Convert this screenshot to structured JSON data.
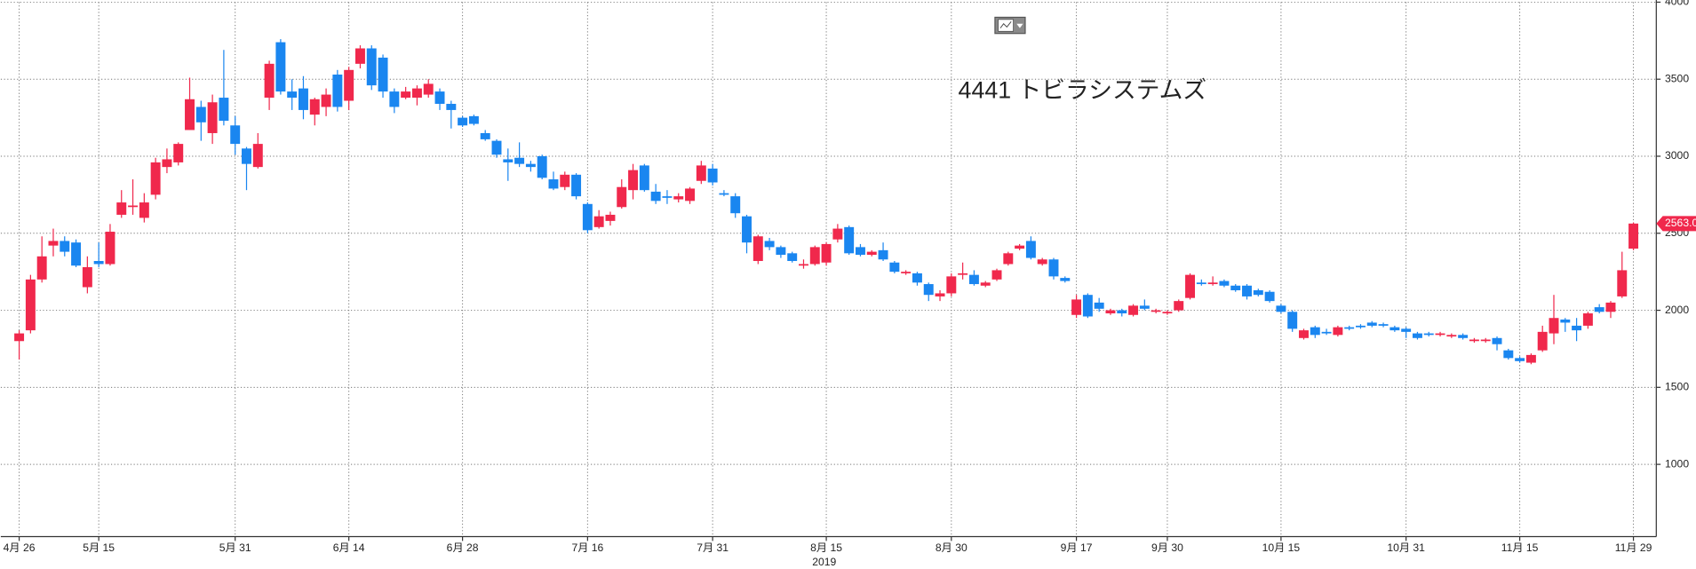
{
  "chart_data": {
    "type": "candlestick",
    "title": "4441 トビラシステムズ",
    "xlabel": "2019",
    "categories": [
      "4月 26",
      null,
      null,
      null,
      null,
      null,
      null,
      "5月 15",
      null,
      null,
      null,
      null,
      null,
      null,
      null,
      null,
      null,
      null,
      null,
      "5月 31",
      null,
      null,
      null,
      null,
      null,
      null,
      null,
      null,
      null,
      "6月 14",
      null,
      null,
      null,
      null,
      null,
      null,
      null,
      null,
      null,
      "6月 28",
      null,
      null,
      null,
      null,
      null,
      null,
      null,
      null,
      null,
      null,
      "7月 16",
      null,
      null,
      null,
      null,
      null,
      null,
      null,
      null,
      null,
      null,
      "7月 31",
      null,
      null,
      null,
      null,
      null,
      null,
      null,
      null,
      null,
      "8月 15",
      null,
      null,
      null,
      null,
      null,
      null,
      null,
      null,
      null,
      null,
      "8月 30",
      null,
      null,
      null,
      null,
      null,
      null,
      null,
      null,
      null,
      null,
      "9月 17",
      null,
      null,
      null,
      null,
      null,
      null,
      null,
      "9月 30",
      null,
      null,
      null,
      null,
      null,
      null,
      null,
      null,
      null,
      "10月 15",
      null,
      null,
      null,
      null,
      null,
      null,
      null,
      null,
      null,
      null,
      "10月 31",
      null,
      null,
      null,
      null,
      null,
      null,
      null,
      null,
      null,
      "11月 15",
      null,
      null,
      null,
      null,
      null,
      null,
      null,
      null,
      null,
      "11月 29"
    ],
    "open": [
      1800,
      1870,
      2200,
      2420,
      2450,
      2440,
      2150,
      2320,
      2300,
      2620,
      2670,
      2600,
      2750,
      2930,
      2960,
      3170,
      3320,
      3150,
      3380,
      3200,
      3050,
      2930,
      3380,
      3740,
      3420,
      3440,
      3270,
      3320,
      3530,
      3360,
      3600,
      3700,
      3640,
      3420,
      3380,
      3380,
      3400,
      3420,
      3340,
      3250,
      3260,
      3150,
      3100,
      2980,
      2990,
      2950,
      3000,
      2850,
      2800,
      2880,
      2690,
      2540,
      2580,
      2670,
      2780,
      2940,
      2770,
      2740,
      2720,
      2710,
      2840,
      2920,
      2760,
      2740,
      2610,
      2320,
      2450,
      2410,
      2370,
      2290,
      2300,
      2310,
      2460,
      2540,
      2410,
      2360,
      2390,
      2310,
      2240,
      2240,
      2170,
      2090,
      2110,
      2230,
      2230,
      2160,
      2200,
      2300,
      2400,
      2450,
      2300,
      2330,
      2210,
      1970,
      2100,
      2050,
      1980,
      2000,
      1970,
      2030,
      1990,
      1980,
      2000,
      2080,
      2180,
      2170,
      2190,
      2160,
      2160,
      2130,
      2120,
      2030,
      1990,
      1820,
      1890,
      1860,
      1840,
      1890,
      1900,
      1920,
      1910,
      1890,
      1880,
      1850,
      1850,
      1840,
      1830,
      1840,
      1800,
      1800,
      1820,
      1740,
      1690,
      1660,
      1740,
      1850,
      1940,
      1900,
      1900,
      2020,
      1990,
      2090,
      2400
    ],
    "high": [
      1870,
      2230,
      2480,
      2530,
      2480,
      2460,
      2350,
      2440,
      2560,
      2780,
      2850,
      2760,
      2990,
      3050,
      3090,
      3510,
      3360,
      3400,
      3690,
      3260,
      3060,
      3150,
      3620,
      3760,
      3500,
      3520,
      3380,
      3440,
      3560,
      3580,
      3720,
      3720,
      3660,
      3440,
      3450,
      3460,
      3500,
      3440,
      3360,
      3260,
      3270,
      3170,
      3110,
      3050,
      3090,
      2970,
      3010,
      2900,
      2900,
      2890,
      2700,
      2650,
      2640,
      2850,
      2950,
      2950,
      2820,
      2780,
      2760,
      2800,
      2970,
      2950,
      2780,
      2760,
      2620,
      2490,
      2470,
      2420,
      2380,
      2330,
      2420,
      2440,
      2560,
      2550,
      2430,
      2390,
      2440,
      2320,
      2260,
      2250,
      2180,
      2130,
      2240,
      2310,
      2260,
      2190,
      2270,
      2380,
      2430,
      2480,
      2340,
      2340,
      2220,
      2100,
      2110,
      2080,
      2010,
      2010,
      2040,
      2070,
      2010,
      2000,
      2070,
      2240,
      2200,
      2220,
      2200,
      2170,
      2170,
      2140,
      2130,
      2040,
      2000,
      1880,
      1900,
      1880,
      1900,
      1900,
      1910,
      1930,
      1920,
      1900,
      1890,
      1860,
      1860,
      1860,
      1850,
      1850,
      1820,
      1820,
      1830,
      1750,
      1700,
      1720,
      1900,
      2100,
      1950,
      1950,
      1990,
      2040,
      2060,
      2380,
      2570
    ],
    "low": [
      1680,
      1850,
      2180,
      2350,
      2350,
      2280,
      2110,
      2280,
      2290,
      2600,
      2620,
      2570,
      2720,
      2890,
      2940,
      3170,
      3100,
      3080,
      3200,
      3010,
      2780,
      2920,
      3300,
      3400,
      3300,
      3240,
      3200,
      3260,
      3290,
      3300,
      3570,
      3430,
      3380,
      3280,
      3370,
      3330,
      3380,
      3300,
      3180,
      3190,
      3200,
      3100,
      2990,
      2840,
      2930,
      2900,
      2850,
      2780,
      2780,
      2720,
      2500,
      2530,
      2550,
      2660,
      2720,
      2770,
      2690,
      2690,
      2700,
      2690,
      2820,
      2810,
      2740,
      2600,
      2370,
      2300,
      2390,
      2340,
      2310,
      2270,
      2290,
      2290,
      2440,
      2360,
      2350,
      2350,
      2320,
      2240,
      2230,
      2160,
      2060,
      2060,
      2090,
      2200,
      2160,
      2150,
      2190,
      2290,
      2390,
      2330,
      2290,
      2200,
      2180,
      1950,
      1950,
      1990,
      1970,
      1960,
      1960,
      2000,
      1980,
      1970,
      1990,
      2070,
      2160,
      2160,
      2150,
      2120,
      2070,
      2090,
      2050,
      1980,
      1860,
      1810,
      1820,
      1840,
      1830,
      1870,
      1880,
      1890,
      1890,
      1860,
      1820,
      1810,
      1830,
      1830,
      1820,
      1810,
      1790,
      1790,
      1740,
      1680,
      1660,
      1650,
      1730,
      1780,
      1860,
      1800,
      1880,
      1980,
      1950,
      2080,
      2390
    ],
    "close": [
      1850,
      2200,
      2350,
      2450,
      2380,
      2290,
      2280,
      2300,
      2510,
      2700,
      2680,
      2700,
      2960,
      2980,
      3080,
      3370,
      3220,
      3350,
      3230,
      3080,
      2950,
      3080,
      3600,
      3420,
      3380,
      3300,
      3370,
      3400,
      3320,
      3560,
      3700,
      3460,
      3420,
      3320,
      3420,
      3440,
      3470,
      3340,
      3300,
      3200,
      3210,
      3110,
      3010,
      2960,
      2950,
      2930,
      2860,
      2790,
      2880,
      2740,
      2520,
      2610,
      2620,
      2800,
      2910,
      2780,
      2710,
      2730,
      2740,
      2790,
      2940,
      2830,
      2750,
      2630,
      2440,
      2480,
      2410,
      2360,
      2320,
      2300,
      2410,
      2430,
      2530,
      2370,
      2360,
      2380,
      2330,
      2250,
      2250,
      2180,
      2100,
      2110,
      2220,
      2240,
      2170,
      2180,
      2260,
      2370,
      2420,
      2340,
      2330,
      2220,
      2190,
      2070,
      1960,
      2010,
      2000,
      1980,
      2030,
      2010,
      2000,
      1990,
      2060,
      2230,
      2170,
      2180,
      2160,
      2130,
      2090,
      2100,
      2060,
      1990,
      1880,
      1870,
      1840,
      1850,
      1890,
      1880,
      1890,
      1900,
      1900,
      1870,
      1860,
      1820,
      1840,
      1850,
      1840,
      1820,
      1810,
      1810,
      1780,
      1690,
      1670,
      1710,
      1860,
      1950,
      1920,
      1870,
      1980,
      1990,
      2050,
      2260,
      2563
    ],
    "up_color": "#f0284c",
    "down_color": "#1a86f0",
    "last_price": {
      "value": 2563,
      "label": "2563.0"
    },
    "ylim": [
      531,
      4000
    ],
    "yticks": [
      1000,
      1500,
      2000,
      2500,
      3000,
      3500,
      4000
    ],
    "grid": true
  }
}
